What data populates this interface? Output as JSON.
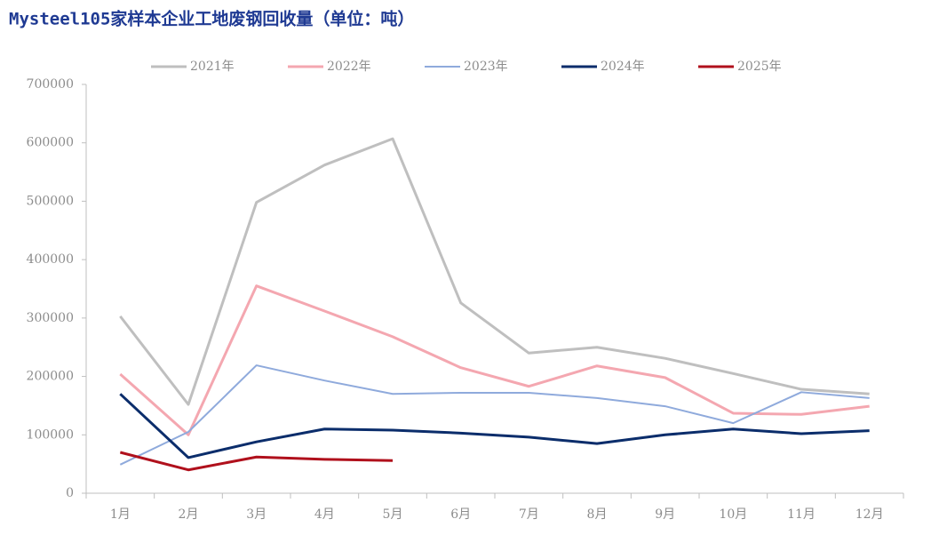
{
  "chart_data": {
    "type": "line",
    "title": "Mysteel105家样本企业工地废钢回收量（单位：吨）",
    "categories": [
      "1月",
      "2月",
      "3月",
      "4月",
      "5月",
      "6月",
      "7月",
      "8月",
      "9月",
      "10月",
      "11月",
      "12月"
    ],
    "series": [
      {
        "name": "2021年",
        "color": "#bfbfbf",
        "width": 3,
        "values": [
          303000,
          152000,
          498000,
          562000,
          607000,
          326000,
          240000,
          250000,
          231000,
          205000,
          178000,
          170000
        ]
      },
      {
        "name": "2022年",
        "color": "#f4a7b0",
        "width": 3,
        "values": [
          204000,
          100000,
          355000,
          312000,
          268000,
          215000,
          183000,
          218000,
          198000,
          137000,
          135000,
          149000
        ]
      },
      {
        "name": "2023年",
        "color": "#8faadc",
        "width": 2,
        "values": [
          49000,
          105000,
          219000,
          193000,
          170000,
          172000,
          172000,
          163000,
          149000,
          120000,
          173000,
          163000
        ]
      },
      {
        "name": "2024年",
        "color": "#0b2d6b",
        "width": 3,
        "values": [
          170000,
          61000,
          88000,
          110000,
          108000,
          103000,
          96000,
          85000,
          100000,
          110000,
          102000,
          107000
        ]
      },
      {
        "name": "2025年",
        "color": "#b0101c",
        "width": 3,
        "values": [
          70000,
          40000,
          62000,
          58000,
          56000,
          null,
          null,
          null,
          null,
          null,
          null,
          null
        ]
      }
    ],
    "ylim": [
      0,
      700000
    ],
    "yticks": [
      0,
      100000,
      200000,
      300000,
      400000,
      500000,
      600000,
      700000
    ]
  }
}
